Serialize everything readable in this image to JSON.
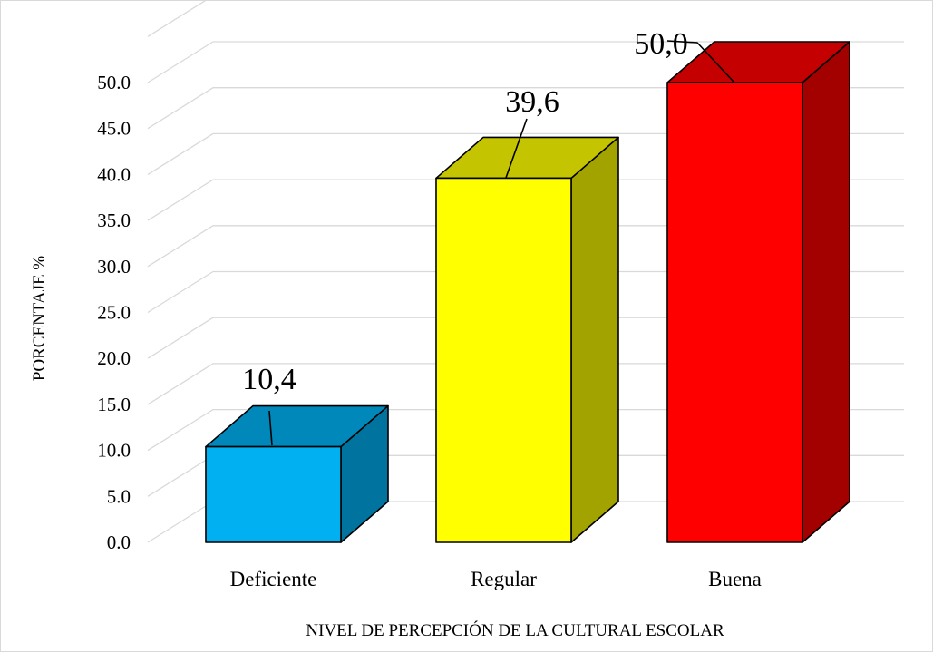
{
  "chart_data": {
    "type": "bar",
    "style": "3d-column",
    "categories": [
      "Deficiente",
      "Regular",
      "Buena"
    ],
    "values": [
      10.4,
      39.6,
      50.0
    ],
    "data_labels": [
      "10,4",
      "39,6",
      "50,0"
    ],
    "colors": {
      "front": [
        "#00b0f0",
        "#ffff00",
        "#ff0000"
      ],
      "top": [
        "#0088bb",
        "#c4c400",
        "#c40000"
      ],
      "side": [
        "#00739e",
        "#a3a300",
        "#a30000"
      ]
    },
    "grid_color": "#d9d9d9",
    "title": "",
    "xlabel": "NIVEL DE PERCEPCIÓN DE LA CULTURAL ESCOLAR",
    "ylabel": "PORCENTAJE %",
    "ylim": [
      0,
      50
    ],
    "ytick_step": 5,
    "ytick_labels": [
      "0.0",
      "5.0",
      "10.0",
      "15.0",
      "20.0",
      "25.0",
      "30.0",
      "35.0",
      "40.0",
      "45.0",
      "50.0"
    ],
    "grid": true,
    "legend": "none"
  }
}
